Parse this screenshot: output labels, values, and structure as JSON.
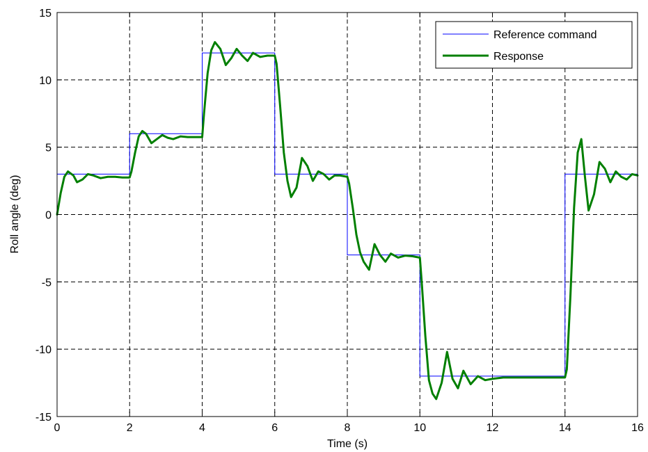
{
  "chart_data": {
    "type": "line",
    "xlabel": "Time (s)",
    "ylabel": "Roll angle (deg)",
    "xlim": [
      0,
      16
    ],
    "ylim": [
      -15,
      15
    ],
    "xticks": [
      0,
      2,
      4,
      6,
      8,
      10,
      12,
      14,
      16
    ],
    "yticks": [
      15,
      10,
      5,
      0,
      -5,
      -10,
      -15
    ],
    "grid": true,
    "grid_style": "dashed",
    "legend_position": "top-right",
    "series": [
      {
        "name": "Reference command",
        "color": "#0000ff",
        "style": "thin",
        "x": [
          0,
          2,
          2,
          4,
          4,
          6,
          6,
          8,
          8,
          10,
          10,
          14,
          14,
          16
        ],
        "y": [
          3,
          3,
          6,
          6,
          12,
          12,
          3,
          3,
          -3,
          -3,
          -12,
          -12,
          3,
          3
        ]
      },
      {
        "name": "Response",
        "color": "#007f00",
        "style": "thick",
        "x": [
          0,
          0.1,
          0.2,
          0.3,
          0.45,
          0.55,
          0.7,
          0.85,
          1.0,
          1.2,
          1.4,
          1.6,
          1.8,
          2.0,
          2.05,
          2.15,
          2.25,
          2.35,
          2.45,
          2.6,
          2.75,
          2.9,
          3.05,
          3.2,
          3.4,
          3.6,
          3.8,
          4.0,
          4.05,
          4.15,
          4.25,
          4.35,
          4.5,
          4.65,
          4.8,
          4.95,
          5.1,
          5.25,
          5.4,
          5.6,
          5.8,
          6.0,
          6.05,
          6.15,
          6.25,
          6.35,
          6.45,
          6.6,
          6.75,
          6.9,
          7.05,
          7.2,
          7.35,
          7.5,
          7.65,
          7.8,
          8.0,
          8.05,
          8.15,
          8.25,
          8.35,
          8.45,
          8.6,
          8.75,
          8.9,
          9.05,
          9.2,
          9.4,
          9.6,
          9.8,
          10.0,
          10.05,
          10.15,
          10.25,
          10.35,
          10.45,
          10.6,
          10.75,
          10.9,
          11.05,
          11.2,
          11.4,
          11.6,
          11.8,
          12.0,
          12.3,
          12.6,
          13.0,
          13.5,
          14.0,
          14.05,
          14.15,
          14.25,
          14.35,
          14.45,
          14.55,
          14.65,
          14.8,
          14.95,
          15.1,
          15.25,
          15.4,
          15.55,
          15.7,
          15.85,
          16.0
        ],
        "y": [
          0,
          1.6,
          2.8,
          3.2,
          2.9,
          2.4,
          2.6,
          3.0,
          2.9,
          2.7,
          2.8,
          2.8,
          2.75,
          2.75,
          3.2,
          4.6,
          5.8,
          6.2,
          6.0,
          5.3,
          5.6,
          5.9,
          5.7,
          5.6,
          5.8,
          5.75,
          5.75,
          5.75,
          7.5,
          10.5,
          12.2,
          12.8,
          12.3,
          11.1,
          11.6,
          12.3,
          11.8,
          11.4,
          12.0,
          11.7,
          11.8,
          11.8,
          11.2,
          8.0,
          4.6,
          2.5,
          1.3,
          2.0,
          4.2,
          3.6,
          2.5,
          3.2,
          3.0,
          2.6,
          2.9,
          2.9,
          2.8,
          2.3,
          0.5,
          -1.5,
          -2.8,
          -3.5,
          -4.1,
          -2.2,
          -3.0,
          -3.5,
          -2.9,
          -3.2,
          -3.05,
          -3.1,
          -3.2,
          -5.0,
          -9.0,
          -12.3,
          -13.3,
          -13.7,
          -12.5,
          -10.2,
          -12.2,
          -12.9,
          -11.6,
          -12.6,
          -12.0,
          -12.3,
          -12.2,
          -12.1,
          -12.1,
          -12.1,
          -12.1,
          -12.1,
          -11.5,
          -6.0,
          0.5,
          4.6,
          5.6,
          2.8,
          0.3,
          1.5,
          3.9,
          3.4,
          2.4,
          3.2,
          2.8,
          2.6,
          3.0,
          2.9
        ]
      }
    ]
  }
}
